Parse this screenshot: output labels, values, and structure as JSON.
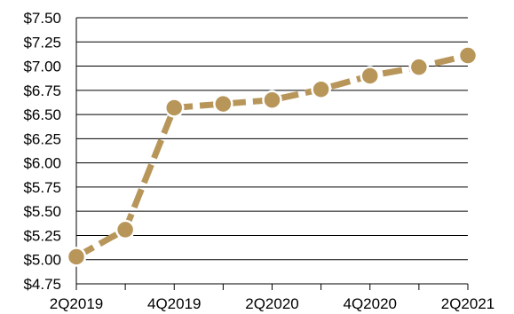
{
  "chart_data": {
    "type": "line",
    "title": "",
    "xlabel": "",
    "ylabel": "",
    "x": [
      "2Q2019",
      "3Q2019",
      "4Q2019",
      "1Q2020",
      "2Q2020",
      "3Q2020",
      "4Q2020",
      "1Q2021",
      "2Q2021"
    ],
    "x_tick_labels": [
      "2Q2019",
      "",
      "4Q2019",
      "",
      "2Q2020",
      "",
      "4Q2020",
      "",
      "2Q2021"
    ],
    "series": [
      {
        "values": [
          5.03,
          5.31,
          6.57,
          6.61,
          6.65,
          6.76,
          6.9,
          6.99,
          7.11
        ]
      }
    ],
    "ylim": [
      4.75,
      7.5
    ],
    "y_ticks": [
      4.75,
      5.0,
      5.25,
      5.5,
      5.75,
      6.0,
      6.25,
      6.5,
      6.75,
      7.0,
      7.25,
      7.5
    ],
    "y_tick_labels": [
      "$4.75",
      "$5.00",
      "$5.25",
      "$5.50",
      "$5.75",
      "$6.00",
      "$6.25",
      "$6.50",
      "$6.75",
      "$7.00",
      "$7.25",
      "$7.50"
    ],
    "grid": "horizontal",
    "legend": "none",
    "colors": {
      "series": "#B8965A",
      "marker_edge": "#ffffff",
      "grid": "#000000",
      "axis": "#000000"
    }
  }
}
